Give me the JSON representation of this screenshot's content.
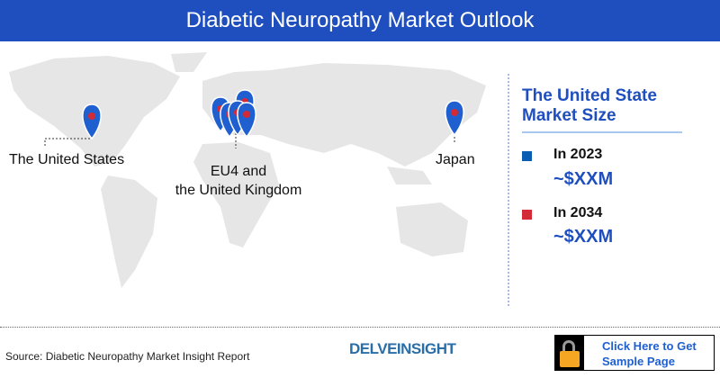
{
  "header": {
    "title": "Diabetic Neuropathy Market Outlook"
  },
  "map": {
    "labels": {
      "us": "The United States",
      "eu_line1": "EU4 and",
      "eu_line2": "the United Kingdom",
      "japan": "Japan"
    }
  },
  "side": {
    "title_line1": "The United State",
    "title_line2": "Market Size",
    "items": [
      {
        "year": "In 2023",
        "value": "~$XXM",
        "color": "#0a5db3"
      },
      {
        "year": "In 2034",
        "value": "~$XXM",
        "color": "#d42a36"
      }
    ]
  },
  "footer": {
    "source": "Source: Diabetic Neuropathy Market Insight Report",
    "logo": "DELVEINSIGHT",
    "cta_line1": "Click Here to Get",
    "cta_line2": "Sample Page"
  },
  "colors": {
    "accent": "#1f4fbf",
    "pin": "#1f5fd0",
    "map": "#e6e6e6"
  }
}
